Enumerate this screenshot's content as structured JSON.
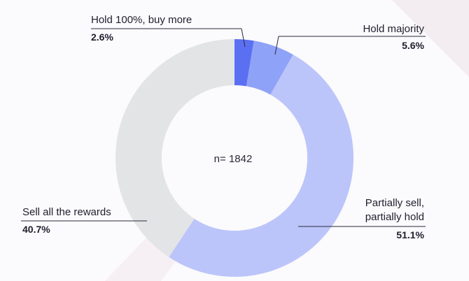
{
  "chart_data": {
    "type": "pie",
    "variant": "donut",
    "center_text": "n= 1842",
    "slices": [
      {
        "label": "Hold 100%, buy more",
        "value": 2.6,
        "display": "2.6%",
        "color": "#5b6ff2"
      },
      {
        "label": "Hold majority",
        "value": 5.6,
        "display": "5.6%",
        "color": "#8ea2f8"
      },
      {
        "label_lines": [
          "Partially sell,",
          "partially hold"
        ],
        "value": 51.1,
        "display": "51.1%",
        "color": "#bcc5fa"
      },
      {
        "label": "Sell all the rewards",
        "value": 40.7,
        "display": "40.7%",
        "color": "#e3e4e6"
      }
    ]
  },
  "colors": {
    "background": "#fbfafc",
    "decor_stripe": "#f0e8ee",
    "text": "#1f1f2e"
  }
}
